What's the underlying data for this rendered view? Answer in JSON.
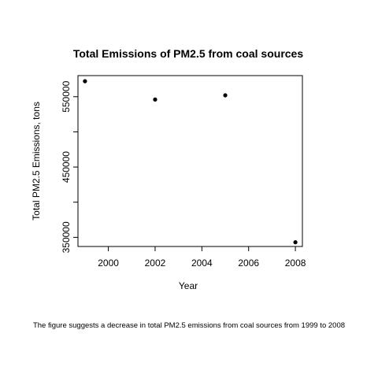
{
  "chart_data": {
    "type": "scatter",
    "title": "Total Emissions of PM2.5 from coal sources",
    "xlabel": "Year",
    "ylabel": "Total PM2.5 Emissions, tons",
    "x": [
      1999,
      2002,
      2005,
      2008
    ],
    "series": [
      {
        "values": [
          572000,
          546000,
          552000,
          343000
        ]
      }
    ],
    "xlim": [
      1998.7,
      2008.3
    ],
    "ylim": [
      337000,
      580000
    ],
    "xticks": [
      2000,
      2002,
      2004,
      2006,
      2008
    ],
    "yticks": [
      350000,
      400000,
      450000,
      500000,
      550000
    ],
    "ytick_labels": [
      "350000",
      "",
      "450000",
      "",
      "550000"
    ],
    "grid": false,
    "legend": "none",
    "point_color": "#000000"
  },
  "caption": "The figure suggests a decrease in total PM2.5 emissions from coal sources from 1999 to 2008"
}
